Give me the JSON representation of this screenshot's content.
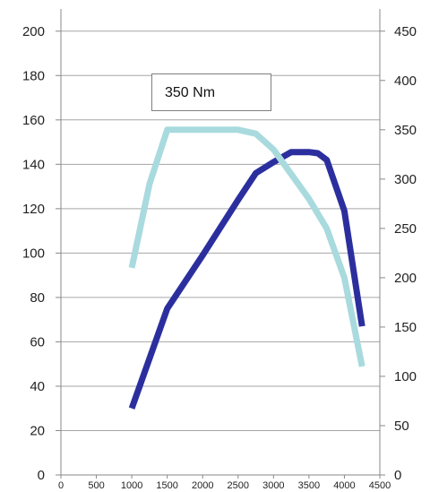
{
  "chart_data": {
    "type": "line",
    "title": "",
    "xlabel": "",
    "ylabel": "",
    "x_ticks": [
      0,
      500,
      1000,
      1500,
      2000,
      2500,
      3000,
      3500,
      4000,
      4500
    ],
    "xlim": [
      0,
      4500
    ],
    "y_left_ticks": [
      0,
      20,
      40,
      60,
      80,
      100,
      120,
      140,
      160,
      180,
      200
    ],
    "ylim_left": [
      0,
      210
    ],
    "y_right_ticks": [
      0,
      50,
      100,
      150,
      200,
      250,
      300,
      350,
      400,
      450
    ],
    "ylim_right": [
      0,
      472.5
    ],
    "grid": "horizontal",
    "series": [
      {
        "axis": "left",
        "color": "#2b2f9e",
        "points": [
          [
            1000,
            30
          ],
          [
            1500,
            75
          ],
          [
            2000,
            99
          ],
          [
            2500,
            124
          ],
          [
            2750,
            136
          ],
          [
            3000,
            141
          ],
          [
            3250,
            145.5
          ],
          [
            3500,
            145.5
          ],
          [
            3625,
            145
          ],
          [
            3750,
            142
          ],
          [
            4000,
            119
          ],
          [
            4250,
            67
          ]
        ]
      },
      {
        "axis": "right",
        "color": "#a8dade",
        "points": [
          [
            1000,
            210
          ],
          [
            1250,
            295
          ],
          [
            1500,
            350
          ],
          [
            2000,
            350
          ],
          [
            2500,
            350
          ],
          [
            2750,
            346
          ],
          [
            3000,
            330
          ],
          [
            3250,
            305
          ],
          [
            3500,
            280
          ],
          [
            3750,
            250
          ],
          [
            4000,
            200
          ],
          [
            4250,
            110
          ]
        ]
      }
    ],
    "annotation": "350 Nm"
  }
}
